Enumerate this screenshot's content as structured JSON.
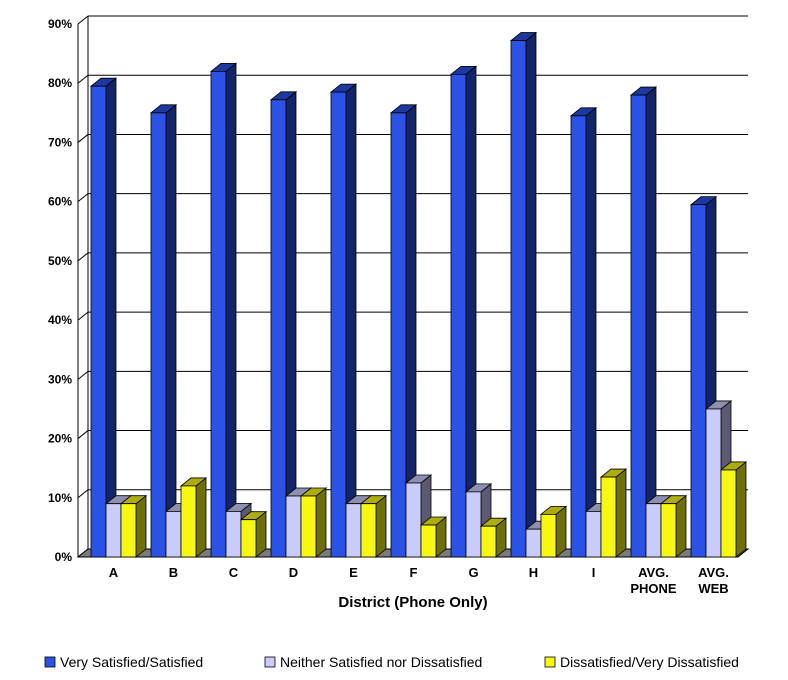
{
  "chart_data": {
    "type": "bar",
    "title": "",
    "xlabel": "District (Phone Only)",
    "ylabel": "",
    "ylim": [
      0,
      90
    ],
    "yticks": [
      "0%",
      "10%",
      "20%",
      "30%",
      "40%",
      "50%",
      "60%",
      "70%",
      "80%",
      "90%"
    ],
    "categories": [
      [
        "A"
      ],
      [
        "B"
      ],
      [
        "C"
      ],
      [
        "D"
      ],
      [
        "E"
      ],
      [
        "F"
      ],
      [
        "G"
      ],
      [
        "H"
      ],
      [
        "I"
      ],
      [
        "AVG.",
        "PHONE"
      ],
      [
        "AVG.",
        "WEB"
      ]
    ],
    "series": [
      {
        "name": "Very Satisfied/Satisfied",
        "color": "#2a52e6",
        "values": [
          79.5,
          75,
          82,
          77.2,
          78.5,
          75,
          81.5,
          87.2,
          74.5,
          78,
          59.5
        ]
      },
      {
        "name": "Neither Satisfied nor Dissatisfied",
        "color": "#c9cbfb",
        "values": [
          9,
          7.7,
          7.7,
          10.3,
          9,
          12.5,
          11,
          4.7,
          7.7,
          9,
          25
        ]
      },
      {
        "name": "Dissatisfied/Very Dissatisfied",
        "color": "#f7f713",
        "values": [
          9,
          12,
          6.3,
          10.3,
          9,
          5.4,
          5.2,
          7.2,
          13.5,
          9,
          14.7
        ]
      }
    ],
    "grid": true,
    "legend_position": "bottom"
  }
}
